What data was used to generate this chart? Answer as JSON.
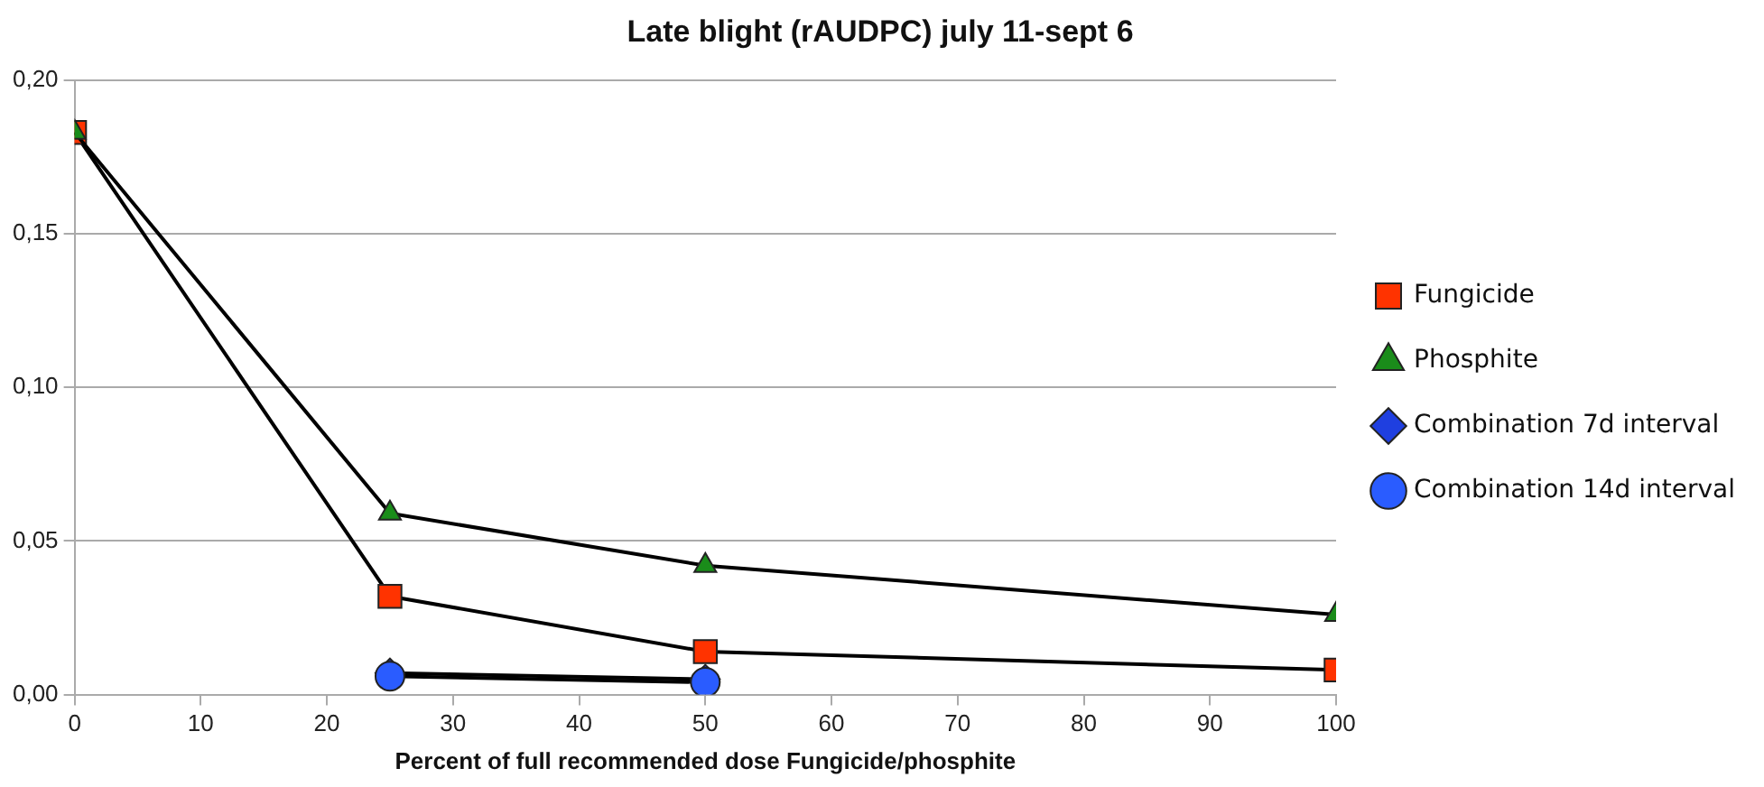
{
  "chart_data": {
    "type": "line",
    "title": "Late blight (rAUDPC) july 11-sept 6",
    "xlabel": "Percent of full recommended dose Fungicide/phosphite",
    "xlim": [
      0,
      100
    ],
    "xticks": [
      0,
      10,
      20,
      30,
      40,
      50,
      60,
      70,
      80,
      90,
      100
    ],
    "ylim": [
      0,
      0.2
    ],
    "yticks": [
      {
        "value": 0,
        "label": "0,00"
      },
      {
        "value": 0.05,
        "label": "0,05"
      },
      {
        "value": 0.1,
        "label": "0,10"
      },
      {
        "value": 0.15,
        "label": "0,15"
      },
      {
        "value": 0.2,
        "label": "0,20"
      }
    ],
    "grid": "y",
    "legend": "right",
    "series": [
      {
        "name": "Fungicide",
        "color": "#ff3300",
        "marker": "square",
        "x": [
          0,
          25,
          50,
          100
        ],
        "values": [
          0.183,
          0.032,
          0.014,
          0.008
        ]
      },
      {
        "name": "Phosphite",
        "color": "#1a8c1a",
        "marker": "triangle",
        "x": [
          0,
          25,
          50,
          100
        ],
        "values": [
          0.183,
          0.059,
          0.042,
          0.026
        ]
      },
      {
        "name": "Combination 7d interval",
        "color": "#1f3fe0",
        "marker": "diamond",
        "x": [
          25,
          50
        ],
        "values": [
          0.007,
          0.005
        ]
      },
      {
        "name": "Combination 14d interval",
        "color": "#2a5cff",
        "marker": "circle",
        "x": [
          25,
          50
        ],
        "values": [
          0.006,
          0.004
        ]
      }
    ]
  }
}
